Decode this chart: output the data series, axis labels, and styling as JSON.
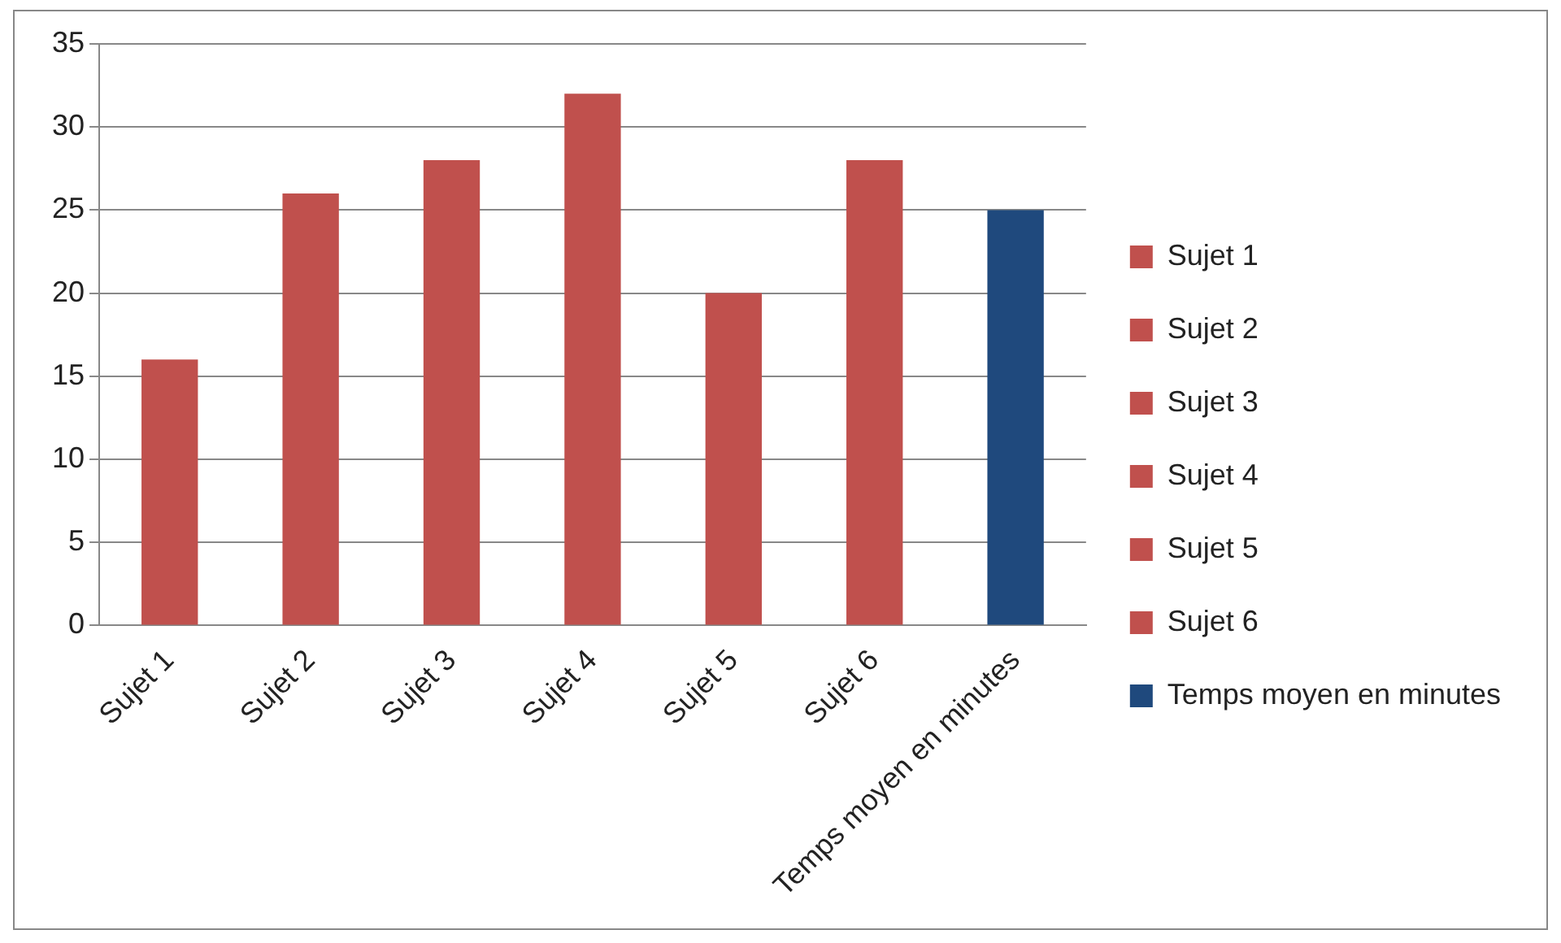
{
  "chart_data": {
    "type": "bar",
    "categories": [
      "Sujet 1",
      "Sujet 2",
      "Sujet 3",
      "Sujet 4",
      "Sujet 5",
      "Sujet 6",
      "Temps moyen en minutes"
    ],
    "series": [
      {
        "name": "Sujet 1",
        "color": "#c0504d",
        "values": [
          16,
          null,
          null,
          null,
          null,
          null,
          null
        ]
      },
      {
        "name": "Sujet 2",
        "color": "#c0504d",
        "values": [
          null,
          26,
          null,
          null,
          null,
          null,
          null
        ]
      },
      {
        "name": "Sujet 3",
        "color": "#c0504d",
        "values": [
          null,
          null,
          28,
          null,
          null,
          null,
          null
        ]
      },
      {
        "name": "Sujet 4",
        "color": "#c0504d",
        "values": [
          null,
          null,
          null,
          32,
          null,
          null,
          null
        ]
      },
      {
        "name": "Sujet 5",
        "color": "#c0504d",
        "values": [
          null,
          null,
          null,
          null,
          20,
          null,
          null
        ]
      },
      {
        "name": "Sujet 6",
        "color": "#c0504d",
        "values": [
          null,
          null,
          null,
          null,
          null,
          28,
          null
        ]
      },
      {
        "name": "Temps moyen en minutes",
        "color": "#1f497d",
        "values": [
          null,
          null,
          null,
          null,
          null,
          null,
          25
        ]
      }
    ],
    "stacked": true,
    "ylim": [
      0,
      35
    ],
    "yticks": [
      0,
      5,
      10,
      15,
      20,
      25,
      30,
      35
    ],
    "grid": "y",
    "legend": "right"
  }
}
